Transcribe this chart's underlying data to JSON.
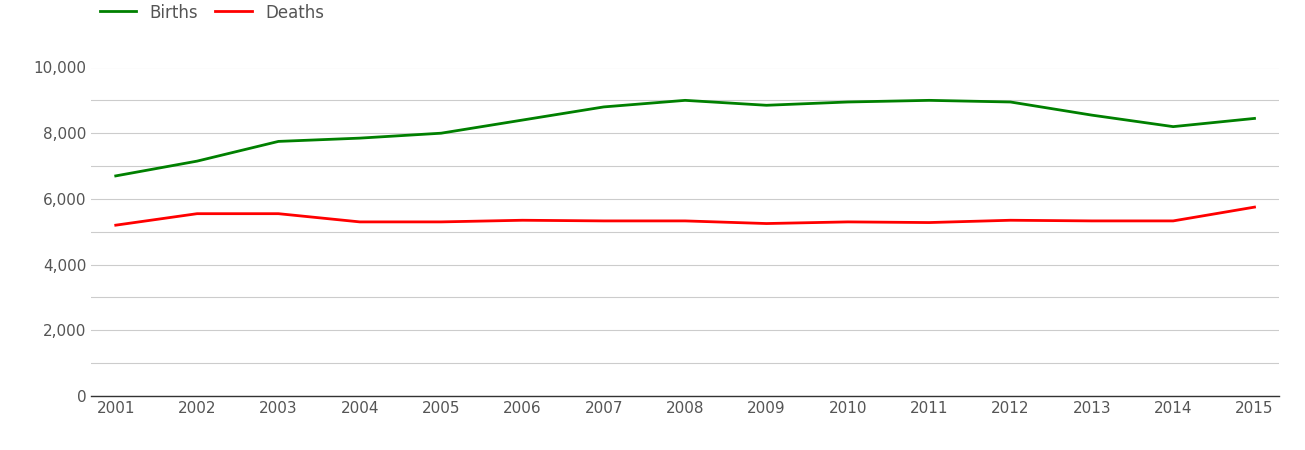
{
  "years": [
    2001,
    2002,
    2003,
    2004,
    2005,
    2006,
    2007,
    2008,
    2009,
    2010,
    2011,
    2012,
    2013,
    2014,
    2015
  ],
  "births": [
    6700,
    7150,
    7750,
    7850,
    8000,
    8400,
    8800,
    9000,
    8850,
    8950,
    9000,
    8950,
    8550,
    8200,
    8450
  ],
  "deaths": [
    5200,
    5550,
    5550,
    5300,
    5300,
    5350,
    5330,
    5330,
    5250,
    5300,
    5280,
    5350,
    5330,
    5330,
    5750
  ],
  "births_color": "#008000",
  "deaths_color": "#ff0000",
  "line_width": 2.0,
  "legend_labels": [
    "Births",
    "Deaths"
  ],
  "ylim": [
    0,
    10000
  ],
  "yticks_major": [
    0,
    2000,
    4000,
    6000,
    8000,
    10000
  ],
  "yticks_minor": [
    1000,
    3000,
    5000,
    7000,
    9000
  ],
  "background_color": "#ffffff",
  "grid_color": "#cccccc",
  "tick_label_color": "#555555",
  "tick_fontsize": 11,
  "legend_fontsize": 12
}
